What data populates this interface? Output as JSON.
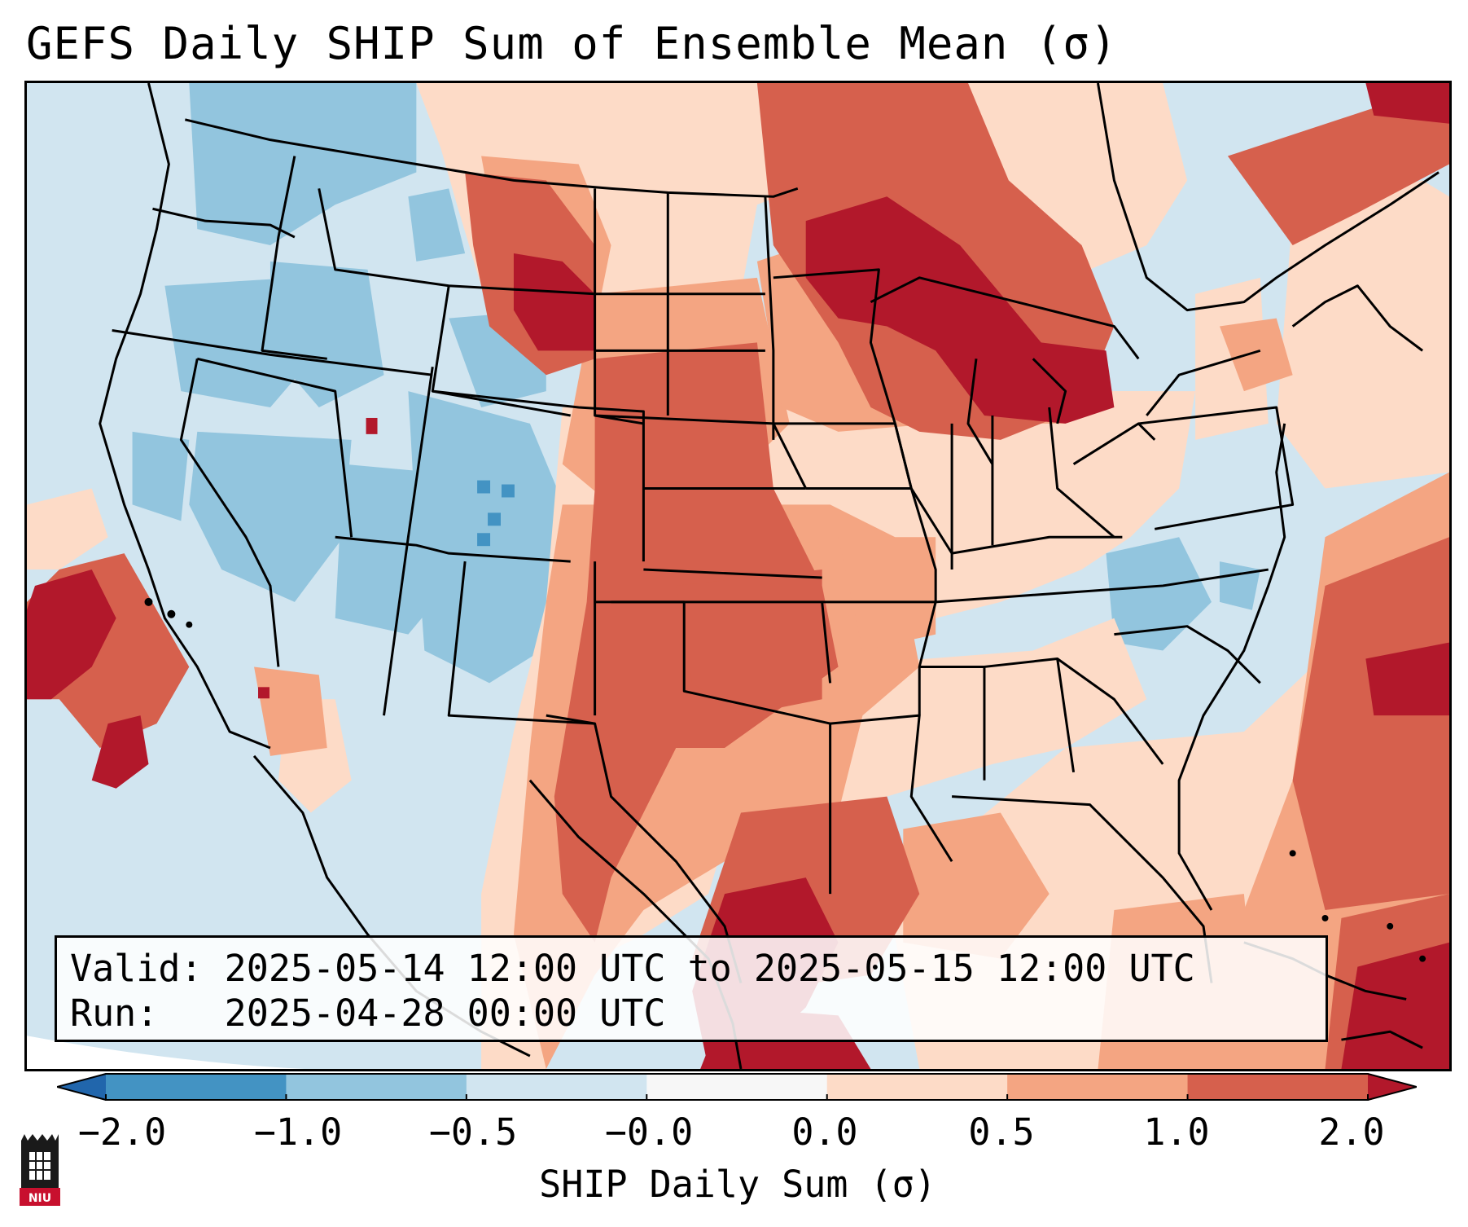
{
  "title": "GEFS Daily SHIP Sum of Ensemble Mean (σ)",
  "info": {
    "valid_label": "Valid:",
    "valid_value": "2025-05-14 12:00 UTC to 2025-05-15 12:00 UTC",
    "run_label": "Run:",
    "run_value": "2025-04-28 00:00 UTC"
  },
  "colorbar": {
    "label": "SHIP Daily Sum (σ)",
    "tick_labels": [
      "−2.0",
      "−1.0",
      "−0.5",
      "−0.0",
      "0.0",
      "0.5",
      "1.0",
      "2.0"
    ],
    "bins": [
      {
        "range": "<-2.0",
        "color": "#2166ac"
      },
      {
        "range": "-2.0 to -1.0",
        "color": "#4393c3"
      },
      {
        "range": "-1.0 to -0.5",
        "color": "#92c5de"
      },
      {
        "range": "-0.5 to -0.0",
        "color": "#d1e5f0"
      },
      {
        "range": "-0.0 to 0.0",
        "color": "#f7f7f7"
      },
      {
        "range": "0.0 to 0.5",
        "color": "#fddbc7"
      },
      {
        "range": "0.5 to 1.0",
        "color": "#f4a582"
      },
      {
        "range": "1.0 to 2.0",
        "color": "#d6604d"
      },
      {
        "range": ">2.0",
        "color": "#b2182b"
      }
    ],
    "extend": "both"
  },
  "logo": {
    "text": "NIU",
    "icon": "university-seal-icon"
  },
  "map": {
    "region": "Continental United States",
    "variable": "SHIP daily sum anomaly",
    "features": [
      "state-borders",
      "coastlines",
      "great-lakes"
    ]
  }
}
